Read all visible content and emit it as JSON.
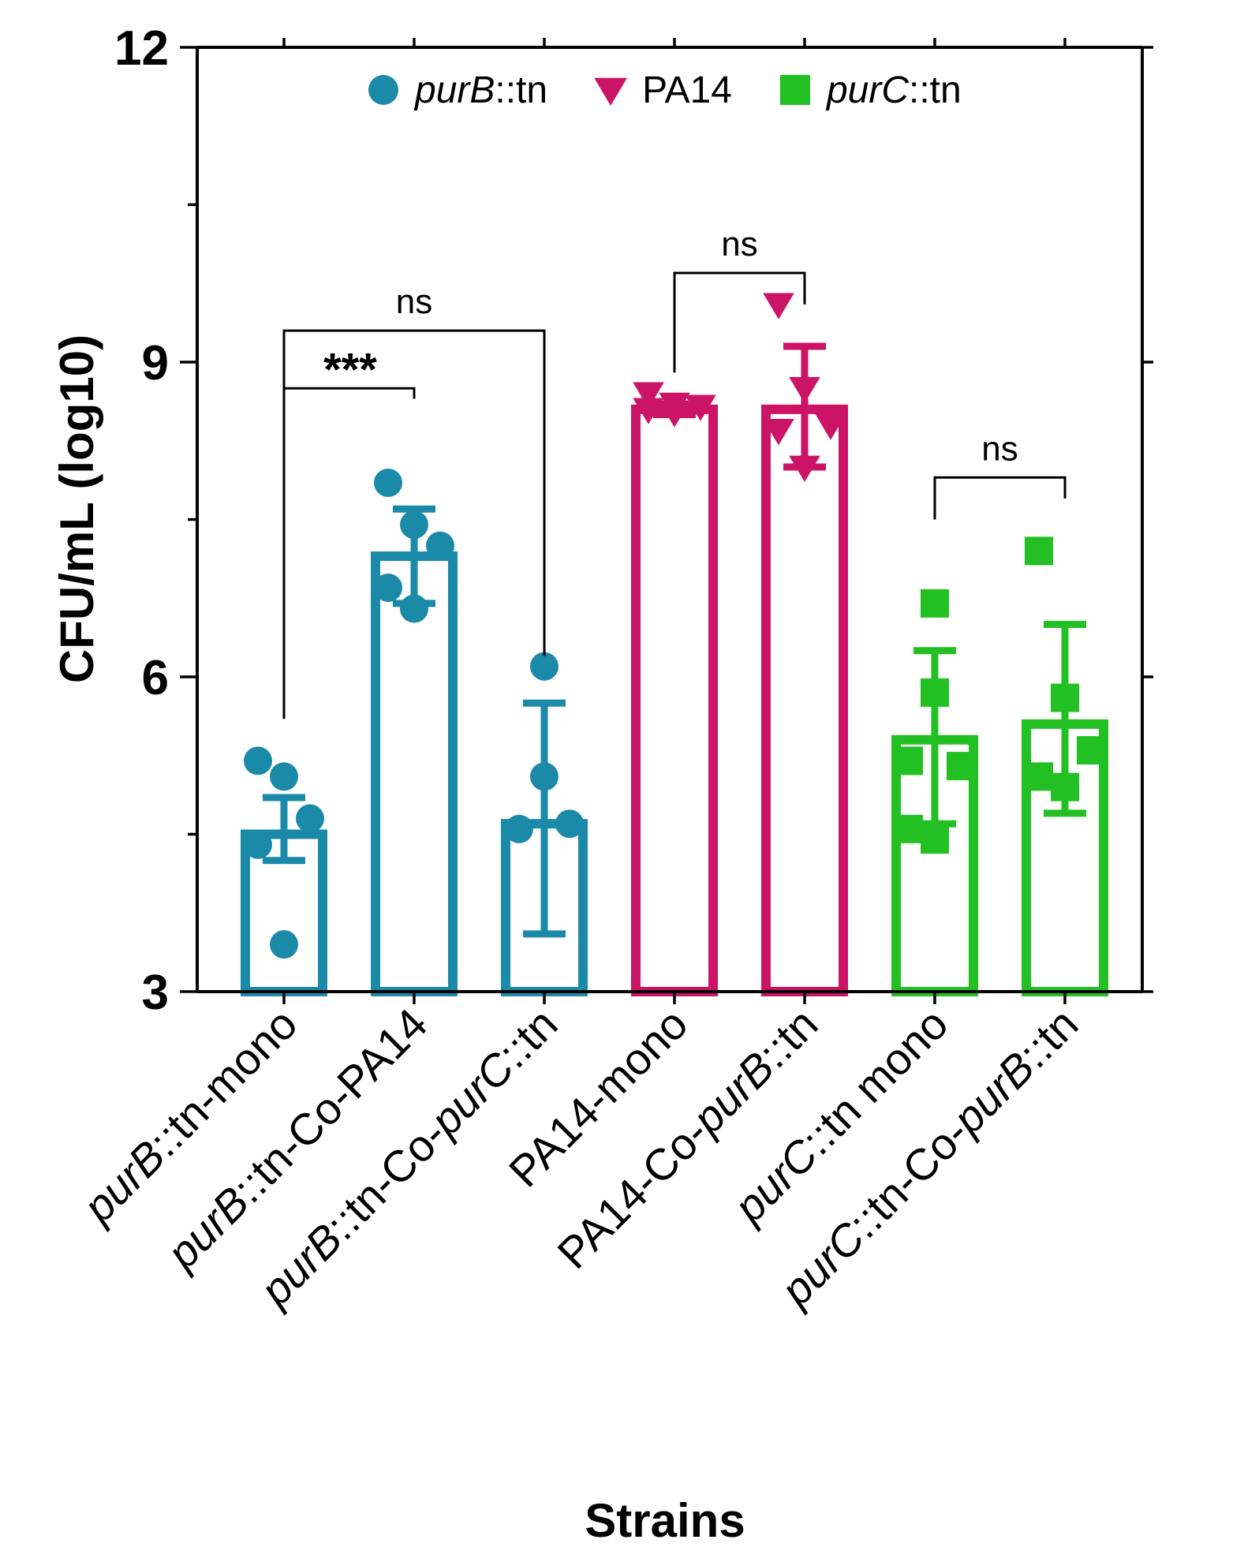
{
  "chart_data": {
    "type": "bar",
    "title": "",
    "xlabel": "Strains",
    "ylabel": "CFU/mL (log10)",
    "ylim": [
      3,
      12
    ],
    "yticks": [
      "3",
      "6",
      "9",
      "12"
    ],
    "y_minor_ticks": [
      4.5,
      7.5,
      10.5
    ],
    "grid": false,
    "legend": {
      "position": "top",
      "entries": [
        {
          "name": "purB",
          "suffix": "::tn",
          "marker": "circle",
          "color": "#1b8aa8"
        },
        {
          "name": "PA14",
          "suffix": "",
          "marker": "triangle-down",
          "color": "#cc1466"
        },
        {
          "name": "purC",
          "suffix": "::tn",
          "marker": "square",
          "color": "#22c022"
        }
      ]
    },
    "categories": [
      {
        "parts": [
          {
            "t": "purB",
            "i": true
          },
          {
            "t": "::tn-mono",
            "i": false
          }
        ],
        "group": 0,
        "mean": 4.5,
        "sd": [
          4.25,
          4.85
        ],
        "points": [
          5.2,
          5.05,
          4.65,
          4.4,
          3.45
        ]
      },
      {
        "parts": [
          {
            "t": "purB",
            "i": true
          },
          {
            "t": "::tn-Co-PA14",
            "i": false
          }
        ],
        "group": 0,
        "mean": 7.15,
        "sd": [
          6.7,
          7.6
        ],
        "points": [
          7.85,
          7.45,
          7.25,
          6.85,
          6.65
        ]
      },
      {
        "parts": [
          {
            "t": "purB",
            "i": true
          },
          {
            "t": "::tn-Co-",
            "i": false
          },
          {
            "t": "purC",
            "i": true
          },
          {
            "t": "::tn",
            "i": false
          }
        ],
        "group": 0,
        "mean": 4.6,
        "sd": [
          3.55,
          5.75
        ],
        "points": [
          6.1,
          5.05,
          4.6,
          4.55
        ]
      },
      {
        "parts": [
          {
            "t": "PA14-mono",
            "i": false
          }
        ],
        "group": 1,
        "mean": 8.55,
        "sd": [
          8.5,
          8.6
        ],
        "points": [
          8.7,
          8.6,
          8.58,
          8.55,
          8.52
        ]
      },
      {
        "parts": [
          {
            "t": "PA14-Co-",
            "i": false
          },
          {
            "t": "purB",
            "i": true
          },
          {
            "t": "::tn",
            "i": false
          }
        ],
        "group": 1,
        "mean": 8.55,
        "sd": [
          8.0,
          9.15
        ],
        "points": [
          9.55,
          8.75,
          8.4,
          8.35,
          8.0
        ]
      },
      {
        "parts": [
          {
            "t": "purC",
            "i": true
          },
          {
            "t": "::tn mono",
            "i": false
          }
        ],
        "group": 2,
        "mean": 5.4,
        "sd": [
          4.6,
          6.25
        ],
        "points": [
          6.7,
          5.85,
          5.2,
          5.15,
          4.55,
          4.45
        ]
      },
      {
        "parts": [
          {
            "t": "purC",
            "i": true
          },
          {
            "t": "::tn-Co-",
            "i": false
          },
          {
            "t": "purB",
            "i": true
          },
          {
            "t": "::tn",
            "i": false
          }
        ],
        "group": 2,
        "mean": 5.55,
        "sd": [
          4.7,
          6.5
        ],
        "points": [
          7.2,
          5.8,
          5.3,
          5.05,
          4.95
        ]
      }
    ],
    "annotations": [
      {
        "text": "***",
        "from": 0,
        "to": 1,
        "y": 8.75,
        "drop_from": 8.75,
        "drop_to": 8.65
      },
      {
        "text": "ns",
        "from": 0,
        "to": 2,
        "y": 9.3,
        "drop_from": 5.6,
        "drop_to": 6.2
      },
      {
        "text": "ns",
        "from": 3,
        "to": 4,
        "y": 9.85,
        "drop_from": 8.9,
        "drop_to": 9.55
      },
      {
        "text": "ns",
        "from": 5,
        "to": 6,
        "y": 7.9,
        "drop_from": 7.5,
        "drop_to": 7.7
      }
    ]
  }
}
